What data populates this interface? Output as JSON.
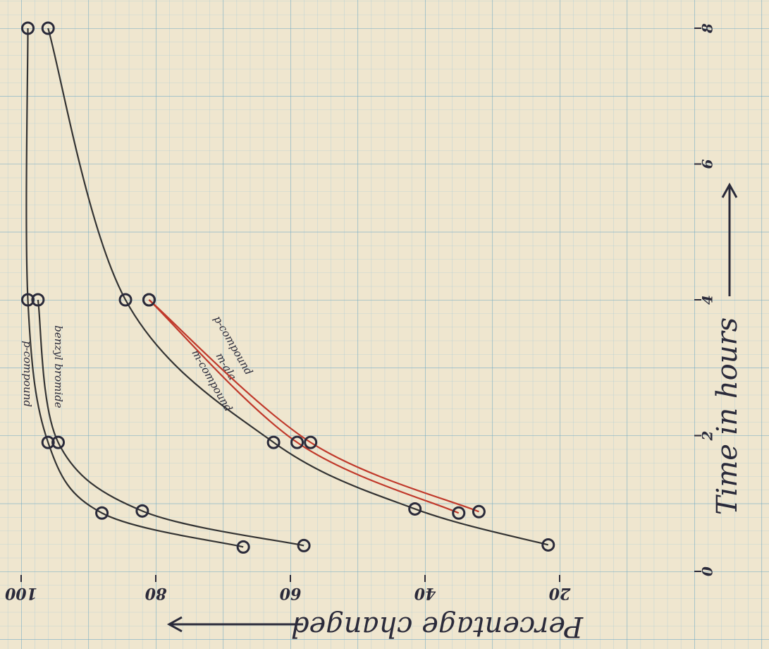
{
  "chart_data": {
    "type": "line",
    "x_label": "Time in hours",
    "y_label": "Percentage changed",
    "xlim": [
      0,
      8
    ],
    "xticks": [
      0,
      2,
      4,
      6,
      8
    ],
    "ylim": [
      100,
      0
    ],
    "yticks": [
      100,
      80,
      60,
      40,
      20
    ],
    "grid": true,
    "series": [
      {
        "name": "p-compound",
        "color": "#333333",
        "x": [
          8,
          4,
          1.9,
          0.86,
          0.36
        ],
        "values": [
          99,
          99,
          96,
          88,
          67
        ]
      },
      {
        "name": "benzyl bromide",
        "color": "#333333",
        "x": [
          4,
          1.9,
          0.89,
          0.38
        ],
        "values": [
          97.5,
          94.5,
          82,
          58
        ]
      },
      {
        "name": "m-compound",
        "color": "#333333",
        "x": [
          8,
          4,
          1.9,
          0.92,
          0.39
        ],
        "values": [
          96,
          84.5,
          62.5,
          41.5,
          21.7
        ]
      },
      {
        "name": "m-ala",
        "color": "#c0392b",
        "x": [
          4,
          1.9,
          0.86
        ],
        "values": [
          81,
          59,
          35
        ]
      },
      {
        "name": "p-compound",
        "color": "#c0392b",
        "x": [
          4,
          1.9,
          0.88
        ],
        "values": [
          81,
          57,
          32
        ]
      }
    ]
  }
}
